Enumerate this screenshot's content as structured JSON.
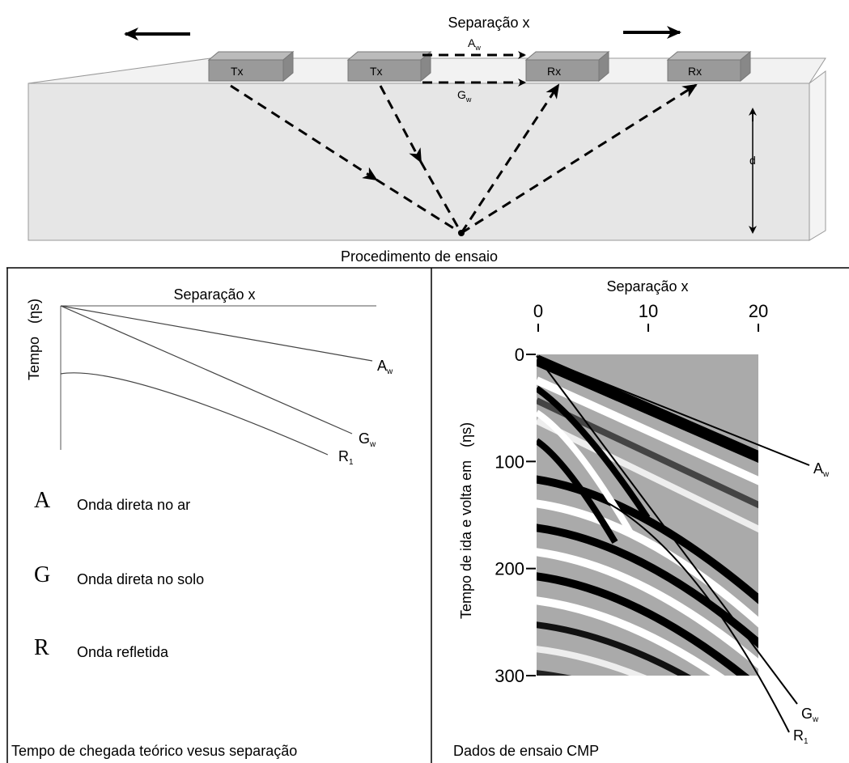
{
  "procedure": {
    "separation_label": "Separação x",
    "air_wave": {
      "letter": "A",
      "sub": "w"
    },
    "ground_wave": {
      "letter": "G",
      "sub": "w"
    },
    "transmitters": [
      "Tx",
      "Tx"
    ],
    "receivers": [
      "Rx",
      "Rx"
    ],
    "depth_label": "d",
    "caption": "Procedimento de ensaio"
  },
  "theory": {
    "x_label": "Separação x",
    "y_label": "Tempo",
    "y_unit": "(ηs)",
    "curves": [
      {
        "letter": "A",
        "sub": "w"
      },
      {
        "letter": "G",
        "sub": "w"
      },
      {
        "letter": "R",
        "sub": "1"
      }
    ],
    "legend": [
      {
        "symbol": "A",
        "text": "Onda direta no ar"
      },
      {
        "symbol": "G",
        "text": "Onda direta no solo"
      },
      {
        "symbol": "R",
        "text": "Onda refletida"
      }
    ],
    "caption": "Tempo de chegada teórico vesus separação"
  },
  "cmp": {
    "x_label": "Separação x",
    "xlim": [
      0,
      20
    ],
    "xticks": [
      0,
      10,
      20
    ],
    "ylim": [
      0,
      300
    ],
    "yticks": [
      0,
      100,
      200,
      300
    ],
    "y_label": "Tempo de ida e volta em",
    "y_unit": "(ηs)",
    "curves": [
      {
        "letter": "A",
        "sub": "w"
      },
      {
        "letter": "G",
        "sub": "w"
      },
      {
        "letter": "R",
        "sub": "1"
      }
    ],
    "caption": "Dados de ensaio CMP"
  }
}
